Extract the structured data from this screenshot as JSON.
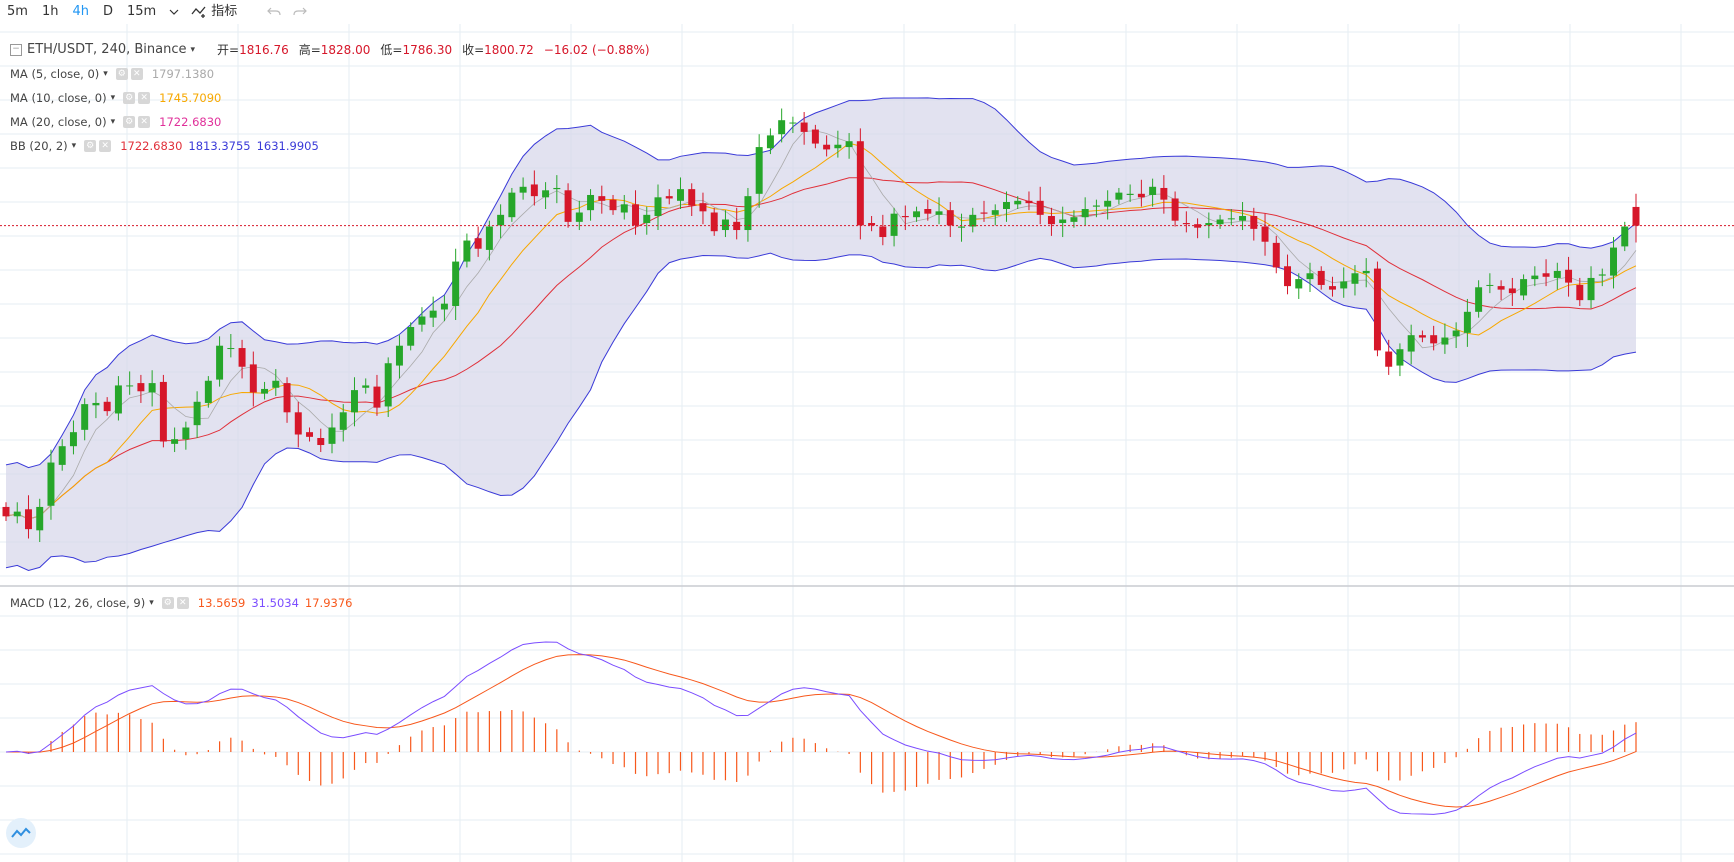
{
  "toolbar": {
    "intervals": [
      "5m",
      "1h",
      "4h",
      "D",
      "15m"
    ],
    "active_interval": "4h",
    "indicators_label": "指标"
  },
  "legend": {
    "symbol": "ETH/USDT, 240, Binance",
    "open_label": "开=",
    "open": "1816.76",
    "high_label": "高=",
    "high": "1828.00",
    "low_label": "低=",
    "low": "1786.30",
    "close_label": "收=",
    "close": "1800.72",
    "change": "−16.02 (−0.88%)",
    "ma5": {
      "name": "MA (5, close, 0)",
      "value": "1797.1380",
      "color": "#aaaaaa"
    },
    "ma10": {
      "name": "MA (10, close, 0)",
      "value": "1745.7090",
      "color": "#f7a800"
    },
    "ma20": {
      "name": "MA (20, close, 0)",
      "value": "1722.6830",
      "color": "#e0309a"
    },
    "bb": {
      "name": "BB (20, 2)",
      "basis": "1722.6830",
      "upper": "1813.3755",
      "lower": "1631.9905",
      "basis_color": "#e0303a",
      "band_color": "#3a3ad8"
    },
    "macd": {
      "name": "MACD (12, 26, close, 9)",
      "hist": "13.5659",
      "macd": "31.5034",
      "signal": "17.9376",
      "hist_color": "#f7581c",
      "macd_color": "#7b4dff",
      "signal_color": "#f7581c"
    }
  },
  "colors": {
    "up": "#26a62a",
    "down": "#d6172a",
    "grid": "#e6eef3",
    "bb_fill": "#d6d6ea",
    "last_price_line": "#d6172a"
  },
  "icons": {
    "chevron": "chevron-down-icon",
    "indicator": "indicator-icon",
    "undo": "undo-icon",
    "redo": "redo-icon",
    "logo": "tradingview-logo-icon"
  },
  "chart_data": {
    "type": "candlestick",
    "symbol": "ETH/USDT",
    "timeframe": "240",
    "last_candle": {
      "open": 1816.76,
      "high": 1828.0,
      "low": 1786.3,
      "close": 1800.72
    },
    "price_scale": {
      "top_ref": {
        "price": 1813.3755
      },
      "bottom_ref": {
        "price": 1631.9905
      }
    },
    "main_values_px_model": "candles rendered from normalized price series",
    "price_series": [
      1552,
      1556,
      1541,
      1560,
      1598,
      1612,
      1624,
      1648,
      1649,
      1642,
      1664,
      1664,
      1659,
      1666,
      1616,
      1618,
      1628,
      1650,
      1668,
      1698,
      1696,
      1680,
      1658,
      1661,
      1668,
      1641,
      1622,
      1620,
      1613,
      1628,
      1641,
      1660,
      1664,
      1645,
      1683,
      1698,
      1714,
      1723,
      1728,
      1734,
      1770,
      1788,
      1781,
      1800,
      1810,
      1829,
      1834,
      1826,
      1831,
      1833,
      1804,
      1812,
      1827,
      1822,
      1814,
      1819,
      1801,
      1810,
      1825,
      1824,
      1832,
      1818,
      1813,
      1796,
      1806,
      1797,
      1826,
      1868,
      1878,
      1891,
      1889,
      1881,
      1871,
      1866,
      1870,
      1873,
      1801,
      1801,
      1791,
      1811,
      1808,
      1813,
      1811,
      1813,
      1801,
      1800,
      1810,
      1811,
      1814,
      1821,
      1822,
      1820,
      1810,
      1802,
      1806,
      1808,
      1815,
      1818,
      1822,
      1829,
      1828,
      1825,
      1834,
      1823,
      1805,
      1802,
      1799,
      1803,
      1806,
      1807,
      1809,
      1798,
      1787,
      1765,
      1749,
      1755,
      1760,
      1750,
      1746,
      1753,
      1760,
      1762,
      1694,
      1680,
      1695,
      1707,
      1705,
      1700,
      1705,
      1711,
      1727,
      1748,
      1750,
      1746,
      1743,
      1755,
      1758,
      1757,
      1762,
      1752,
      1737,
      1756,
      1759,
      1782,
      1800,
      1816
    ]
  }
}
